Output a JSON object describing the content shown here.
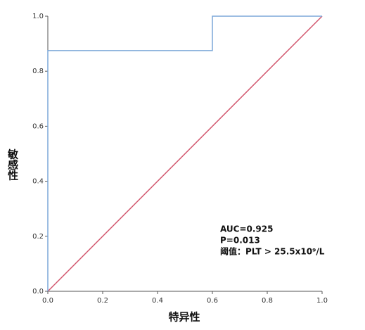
{
  "chart_data": {
    "type": "line",
    "xlabel": "特异性",
    "ylabel": "敏感性",
    "xlim": [
      0,
      1
    ],
    "ylim": [
      0,
      1
    ],
    "xticks": [
      {
        "value": 0,
        "label": "0.0"
      },
      0.2,
      0.4,
      0.6,
      0.8,
      {
        "value": 1,
        "label": "1.0"
      }
    ],
    "yticks": [
      {
        "value": 0,
        "label": "0.0"
      },
      0.2,
      0.4,
      0.6,
      0.8,
      {
        "value": 1,
        "label": "1.0"
      }
    ],
    "grid": false,
    "series": [
      {
        "color": "#7ba7d8",
        "x": [
          0,
          0,
          0.6,
          0.6,
          1
        ],
        "values": [
          0,
          0.875,
          0.875,
          1,
          1
        ]
      },
      {
        "color": "#d2576e",
        "x": [
          0,
          1
        ],
        "values": [
          0,
          1
        ]
      }
    ],
    "annotations": [
      "AUC=0.925",
      "P=0.013",
      "阈值：PLT > 25.5x10⁹/L"
    ]
  }
}
